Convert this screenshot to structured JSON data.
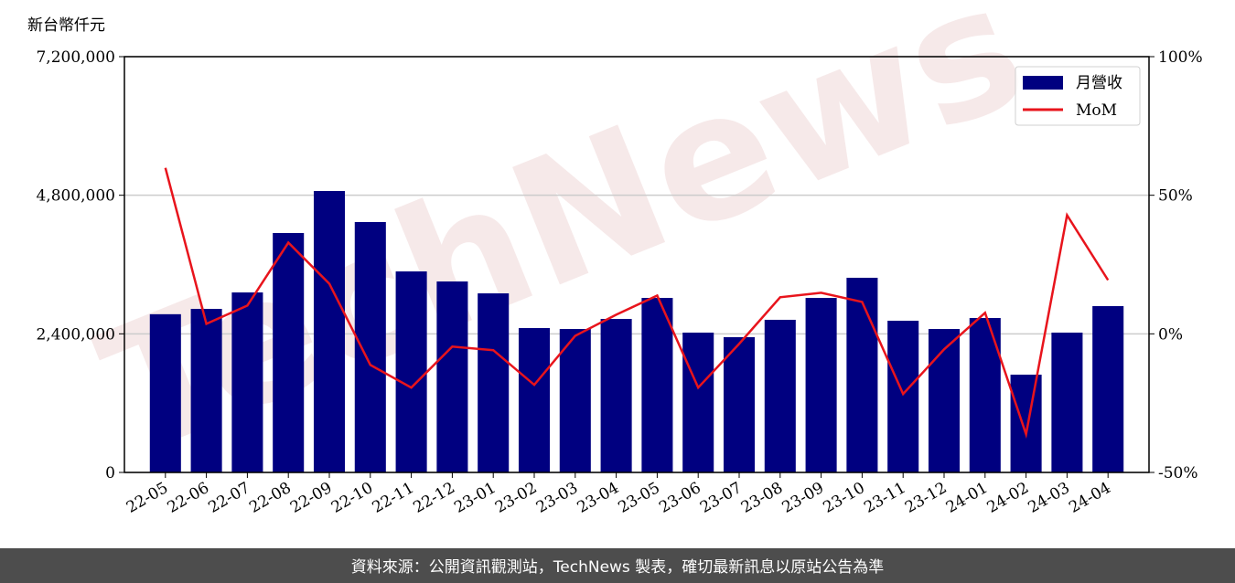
{
  "chart_data": {
    "type": "bar_line",
    "y_label": "新台幣仟元",
    "footer": "資料來源：公開資訊觀測站，TechNews 製表，確切最新訊息以原站公告為準",
    "watermark": "TechNews",
    "categories": [
      "22-05",
      "22-06",
      "22-07",
      "22-08",
      "22-09",
      "22-10",
      "22-11",
      "22-12",
      "23-01",
      "23-02",
      "23-03",
      "23-04",
      "23-05",
      "23-06",
      "23-07",
      "23-08",
      "23-09",
      "23-10",
      "23-11",
      "23-12",
      "24-01",
      "24-02",
      "24-03",
      "24-04"
    ],
    "series": [
      {
        "name": "月營收",
        "type": "bar",
        "color": "#000080",
        "values": [
          2740000,
          2832000,
          3117000,
          4146000,
          4874000,
          4336000,
          3481000,
          3307000,
          3101000,
          2500000,
          2484000,
          2658000,
          3022000,
          2421000,
          2342000,
          2643000,
          3022000,
          3371000,
          2627000,
          2484000,
          2674000,
          1693000,
          2421000,
          2880000
        ]
      },
      {
        "name": "MoM",
        "type": "line",
        "axis": "y2",
        "color": "#e8141c",
        "values": [
          59.9,
          3.6,
          10.2,
          32.9,
          18.1,
          -11.2,
          -19.4,
          -4.6,
          -5.9,
          -18.4,
          -0.7,
          6.9,
          13.8,
          -19.4,
          -3.6,
          13.2,
          14.8,
          11.5,
          -21.7,
          -5.6,
          7.6,
          -36.2,
          42.8,
          19.4
        ]
      }
    ],
    "ylim": [
      0,
      7200000
    ],
    "yticks": [
      0,
      {
        "value": 2400000,
        "label": "2,400,000"
      },
      {
        "value": 4800000,
        "label": "4,800,000"
      },
      {
        "value": 7200000,
        "label": "7,200,000"
      }
    ],
    "y2lim": [
      -50,
      100
    ],
    "y2ticks": [
      {
        "value": -50,
        "label": "-50%"
      },
      {
        "value": 0,
        "label": "0%"
      },
      {
        "value": 50,
        "label": "50%"
      },
      {
        "value": 100,
        "label": "100%"
      }
    ],
    "grid": true,
    "legend": "upper right"
  }
}
